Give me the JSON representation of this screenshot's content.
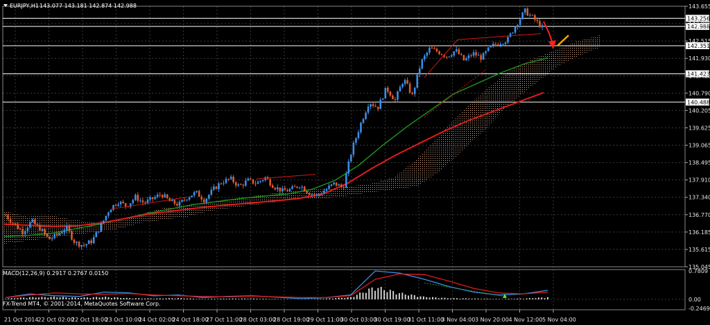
{
  "header": {
    "symbol": "EURJPY,H1",
    "ohlc": "143.077 143.181 142.874 142.988"
  },
  "indicator": {
    "label": "MACD(12,26,9) 0.2917 0.2767 0.0150"
  },
  "footer": {
    "copyright": "FX-Trend MT4, © 2001-2014, MetaQuotes Software Corp."
  },
  "colors": {
    "background": "#000000",
    "grid": "#3a3a3a",
    "bull": "#3c8ee8",
    "bear": "#e05a28",
    "ma_fast": "#1e8c1e",
    "ma_slow": "#e01c1c",
    "cloud": "#d9a98a",
    "arrow_red": "#ff2020",
    "arrow_orange": "#ffa500",
    "macd_line": "#3c8ee8",
    "signal_line": "#e01c1c",
    "histogram": "#d0d0d0"
  },
  "chart_data": [
    {
      "type": "candlestick",
      "title": "EURJPY,H1",
      "x_tick_labels": [
        "21 Oct 2014",
        "22 Oct 02:00",
        "22 Oct 18:00",
        "23 Oct 10:00",
        "24 Oct 02:00",
        "24 Oct 18:00",
        "27 Oct 11:00",
        "28 Oct 03:00",
        "28 Oct 19:00",
        "29 Oct 11:00",
        "30 Oct 03:00",
        "30 Oct 19:00",
        "31 Oct 11:00",
        "3 Nov 04:00",
        "3 Nov 20:00",
        "4 Nov 12:00",
        "5 Nov 04:00"
      ],
      "y_tick_labels": [
        "143.655",
        "142.988",
        "142.515",
        "141.930",
        "141.423",
        "140.790",
        "140.205",
        "139.625",
        "139.065",
        "138.495",
        "137.910",
        "137.340",
        "136.770",
        "136.185",
        "135.615",
        "135.045"
      ],
      "ylim": [
        135.045,
        143.655
      ],
      "horizontal_levels": [
        {
          "value": 143.256,
          "label": "143.256"
        },
        {
          "value": 142.988,
          "label": "142.988"
        },
        {
          "value": 142.351,
          "label": "142.351"
        },
        {
          "value": 141.423,
          "label": "141.423"
        },
        {
          "value": 140.488,
          "label": "140.488"
        }
      ],
      "close_path": [
        136.75,
        136.45,
        136.2,
        136.55,
        136.3,
        135.95,
        136.1,
        136.35,
        135.85,
        135.75,
        135.9,
        136.4,
        136.95,
        137.2,
        137.05,
        137.35,
        137.15,
        137.3,
        137.45,
        137.2,
        137.1,
        137.35,
        137.5,
        137.25,
        137.6,
        137.85,
        137.95,
        137.7,
        137.9,
        137.8,
        138.0,
        137.7,
        137.55,
        137.6,
        137.75,
        137.5,
        137.4,
        137.6,
        137.8,
        137.65,
        138.9,
        139.75,
        140.5,
        140.3,
        140.95,
        140.55,
        141.25,
        140.7,
        141.8,
        142.25,
        142.15,
        142.0,
        142.2,
        141.85,
        142.1,
        141.95,
        142.3,
        142.45,
        142.55,
        143.05,
        143.5,
        143.25,
        142.95
      ],
      "ma_fast": [
        136.05,
        136.08,
        136.15,
        136.3,
        136.45,
        136.62,
        136.8,
        136.95,
        137.1,
        137.2,
        137.3,
        137.38,
        137.45,
        137.6,
        137.9,
        138.4,
        139.05,
        139.65,
        140.2,
        140.75,
        141.1,
        141.45,
        141.75,
        141.95
      ],
      "ma_slow": [
        136.45,
        136.42,
        136.38,
        136.4,
        136.5,
        136.65,
        136.8,
        136.9,
        137.0,
        137.08,
        137.15,
        137.22,
        137.3,
        137.45,
        137.8,
        138.3,
        138.75,
        139.15,
        139.55,
        139.9,
        140.2,
        140.5,
        140.8
      ],
      "series": [
        {
          "name": "",
          "role": "price candles"
        },
        {
          "name": "",
          "role": "fast moving average"
        },
        {
          "name": "",
          "role": "slow moving average"
        },
        {
          "name": "",
          "role": "ichimoku cloud"
        }
      ],
      "annotations": [
        "red down arrow near top",
        "orange up arrow",
        "red trendlines connecting highs"
      ],
      "grid": true
    },
    {
      "type": "line",
      "title": "MACD(12,26,9) 0.2917 0.2767 0.0150",
      "y_tick_labels": [
        "0.7809",
        "0.00",
        "-0.2469"
      ],
      "ylim": [
        -0.2469,
        0.7809
      ],
      "macd_line": [
        0.05,
        0.15,
        0.1,
        0.08,
        0.2,
        0.18,
        0.1,
        0.12,
        0.05,
        0.08,
        0.1,
        0.06,
        0.02,
        0.05,
        0.12,
        0.78,
        0.72,
        0.55,
        0.35,
        0.2,
        0.12,
        0.15,
        0.25
      ],
      "signal_line": [
        0.05,
        0.12,
        0.18,
        0.15,
        0.14,
        0.16,
        0.12,
        0.1,
        0.08,
        0.07,
        0.09,
        0.07,
        0.05,
        0.05,
        0.1,
        0.55,
        0.7,
        0.68,
        0.5,
        0.3,
        0.18,
        0.15,
        0.2
      ],
      "histogram": [
        0.02,
        0.05,
        0.06,
        0.04,
        0.06,
        0.03,
        0.02,
        0.03,
        0.01,
        0.02,
        0.02,
        0.01,
        0.0,
        0.02,
        0.05,
        0.3,
        0.15,
        0.06,
        0.03,
        0.02,
        0.01,
        0.02,
        0.05
      ],
      "grid": true
    }
  ]
}
